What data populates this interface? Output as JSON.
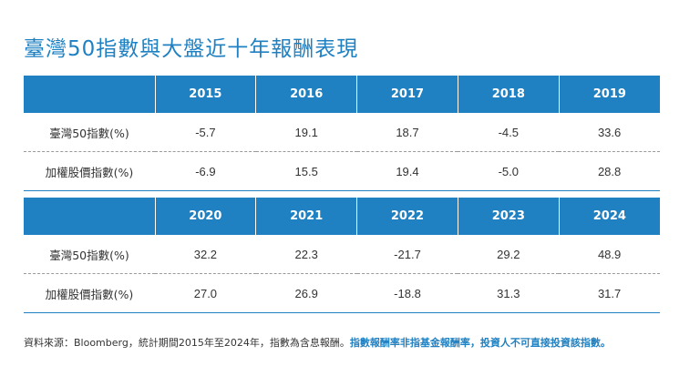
{
  "title": "臺灣50指數與大盤近十年報酬表現",
  "tables": [
    {
      "years": [
        "2015",
        "2016",
        "2017",
        "2018",
        "2019"
      ],
      "rows": [
        {
          "label": "臺灣50指數(%)",
          "values": [
            "-5.7",
            "19.1",
            "18.7",
            "-4.5",
            "33.6"
          ]
        },
        {
          "label": "加權股價指數(%)",
          "values": [
            "-6.9",
            "15.5",
            "19.4",
            "-5.0",
            "28.8"
          ]
        }
      ]
    },
    {
      "years": [
        "2020",
        "2021",
        "2022",
        "2023",
        "2024"
      ],
      "rows": [
        {
          "label": "臺灣50指數(%)",
          "values": [
            "32.2",
            "22.3",
            "-21.7",
            "29.2",
            "48.9"
          ]
        },
        {
          "label": "加權股價指數(%)",
          "values": [
            "27.0",
            "26.9",
            "-18.8",
            "31.3",
            "31.7"
          ]
        }
      ]
    }
  ],
  "footnote": {
    "source": "資料來源：Bloomberg，統計期間2015年至2024年，指數為含息報酬。",
    "disclaimer": "指數報酬率非指基金報酬率，投資人不可直接投資該指數。"
  },
  "colors": {
    "accent": "#1f80c2",
    "header_text": "#ffffff",
    "body_text": "#333333"
  }
}
